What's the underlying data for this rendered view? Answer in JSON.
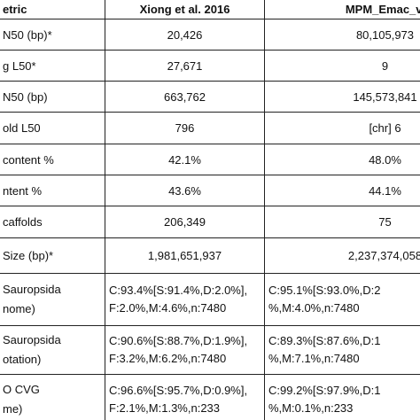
{
  "table": {
    "header": [
      "etric",
      "Xiong et al. 2016",
      "MPM_Emac_v."
    ],
    "rows": [
      [
        "N50 (bp)*",
        "20,426",
        "80,105,973"
      ],
      [
        "g L50*",
        "27,671",
        "9"
      ],
      [
        "N50 (bp)",
        "663,762",
        "145,573,841"
      ],
      [
        "old L50",
        "796",
        "[chr] 6"
      ],
      [
        "content %",
        "42.1%",
        "48.0%"
      ],
      [
        "ntent %",
        "43.6%",
        "44.1%"
      ],
      [
        "caffolds",
        "206,349",
        "75"
      ],
      [
        "Size (bp)*",
        "1,981,651,937",
        "2,237,374,058"
      ],
      [
        [
          "Sauropsida",
          "nome)"
        ],
        [
          "C:93.4%[S:91.4%,D:2.0%],",
          "F:2.0%,M:4.6%,n:7480"
        ],
        [
          "C:95.1%[S:93.0%,D:2",
          "%,M:4.0%,n:7480"
        ]
      ],
      [
        [
          "Sauropsida",
          "otation)"
        ],
        [
          "C:90.6%[S:88.7%,D:1.9%],",
          "F:3.2%,M:6.2%,n:7480"
        ],
        [
          "C:89.3%[S:87.6%,D:1",
          "%,M:7.1%,n:7480"
        ]
      ],
      [
        [
          "O CVG",
          "me)"
        ],
        [
          "C:96.6%[S:95.7%,D:0.9%],",
          "F:2.1%,M:1.3%,n:233"
        ],
        [
          "C:99.2%[S:97.9%,D:1",
          "%,M:0.1%,n:233"
        ]
      ]
    ]
  }
}
